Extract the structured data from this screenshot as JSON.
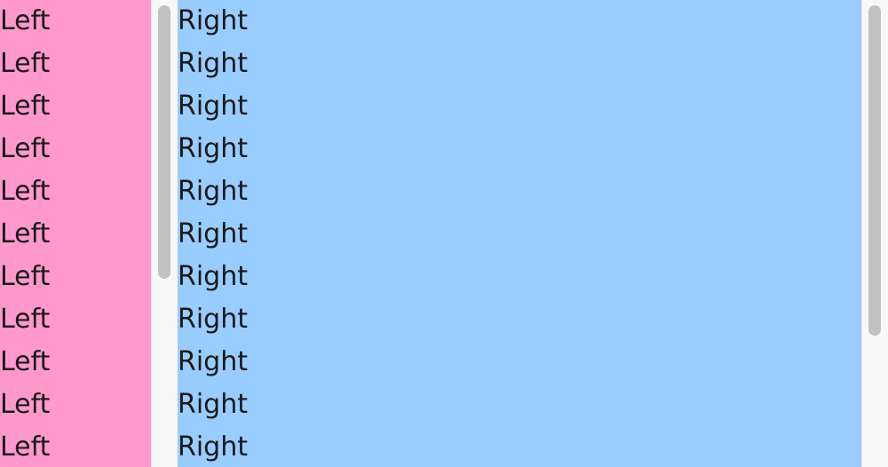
{
  "colors": {
    "left_pane_bg": "#ff99cc",
    "right_pane_bg": "#99ccff",
    "scroll_track": "#f7f7f7",
    "scroll_thumb": "#c1c1c1"
  },
  "left_pane": {
    "items": [
      "Left",
      "Left",
      "Left",
      "Left",
      "Left",
      "Left",
      "Left",
      "Left",
      "Left",
      "Left",
      "Left"
    ]
  },
  "right_pane": {
    "items": [
      "Right",
      "Right",
      "Right",
      "Right",
      "Right",
      "Right",
      "Right",
      "Right",
      "Right",
      "Right",
      "Right"
    ]
  }
}
